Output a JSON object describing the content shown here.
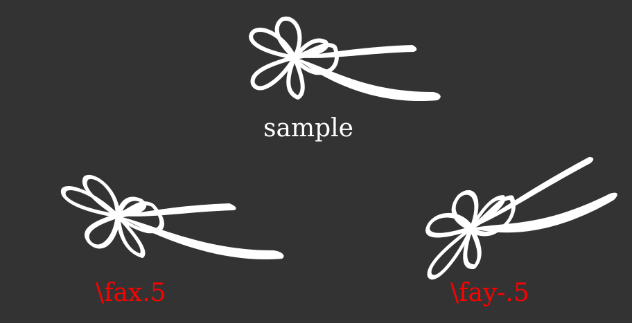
{
  "colors": {
    "background": "#333333",
    "drawing": "#ffffff",
    "sample_label": "#ffffff",
    "transform_label": "#ff0000"
  },
  "figures": [
    {
      "id": "sample",
      "label": "sample",
      "icon": "flower-icon"
    },
    {
      "id": "fax",
      "label": "\\fax.5",
      "icon": "flower-icon"
    },
    {
      "id": "fay",
      "label": "\\fay-.5",
      "icon": "flower-icon"
    }
  ]
}
